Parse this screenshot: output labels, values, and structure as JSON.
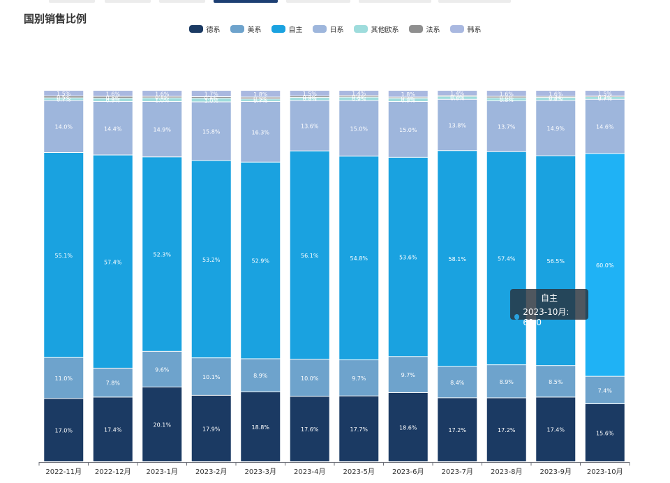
{
  "page": {
    "title": "国别销售比例"
  },
  "tooltip": {
    "title": "自主",
    "label": "2023-10月: 60.0",
    "color": "#29a3e0"
  },
  "chart_data": {
    "type": "bar",
    "stacked": true,
    "title": "国别销售比例",
    "legend_position": "top",
    "categories": [
      "2022-11月",
      "2022-12月",
      "2023-1月",
      "2023-2月",
      "2023-3月",
      "2023-4月",
      "2023-5月",
      "2023-6月",
      "2023-7月",
      "2023-8月",
      "2023-9月",
      "2023-10月"
    ],
    "ylim": [
      0,
      100
    ],
    "series": [
      {
        "name": "德系",
        "color": "#1b3a63",
        "values": [
          17.0,
          17.4,
          20.1,
          17.9,
          18.8,
          17.6,
          17.7,
          18.6,
          17.2,
          17.2,
          17.4,
          15.6
        ]
      },
      {
        "name": "美系",
        "color": "#6ea3cc",
        "values": [
          11.0,
          7.8,
          9.6,
          10.1,
          8.9,
          10.0,
          9.7,
          9.7,
          8.4,
          8.9,
          8.5,
          7.4
        ]
      },
      {
        "name": "自主",
        "color": "#1aa2e0",
        "values": [
          55.1,
          57.4,
          52.3,
          53.2,
          52.9,
          56.1,
          54.8,
          53.6,
          58.1,
          57.4,
          56.5,
          60.0
        ]
      },
      {
        "name": "日系",
        "color": "#9eb6dc",
        "values": [
          14.0,
          14.4,
          14.9,
          15.8,
          16.3,
          13.6,
          15.0,
          15.0,
          13.8,
          13.7,
          14.9,
          14.6
        ]
      },
      {
        "name": "其他欧系",
        "color": "#9edcdc",
        "values": [
          0.7,
          0.9,
          1.0,
          1.0,
          0.7,
          0.8,
          0.9,
          0.9,
          0.8,
          0.8,
          0.8,
          0.7
        ]
      },
      {
        "name": "法系",
        "color": "#8f8f8f",
        "values": [
          0.5,
          0.5,
          0.4,
          0.4,
          0.5,
          0.4,
          0.4,
          0.3,
          0.2,
          0.4,
          0.3,
          0.2
        ]
      },
      {
        "name": "韩系",
        "color": "#a9b8e0",
        "values": [
          1.5,
          1.6,
          1.6,
          1.7,
          1.8,
          1.5,
          1.4,
          1.8,
          1.4,
          1.6,
          1.6,
          1.5
        ]
      }
    ],
    "highlight": {
      "category": "2023-10月",
      "series": "自主",
      "color": "#1fb2f5"
    }
  }
}
